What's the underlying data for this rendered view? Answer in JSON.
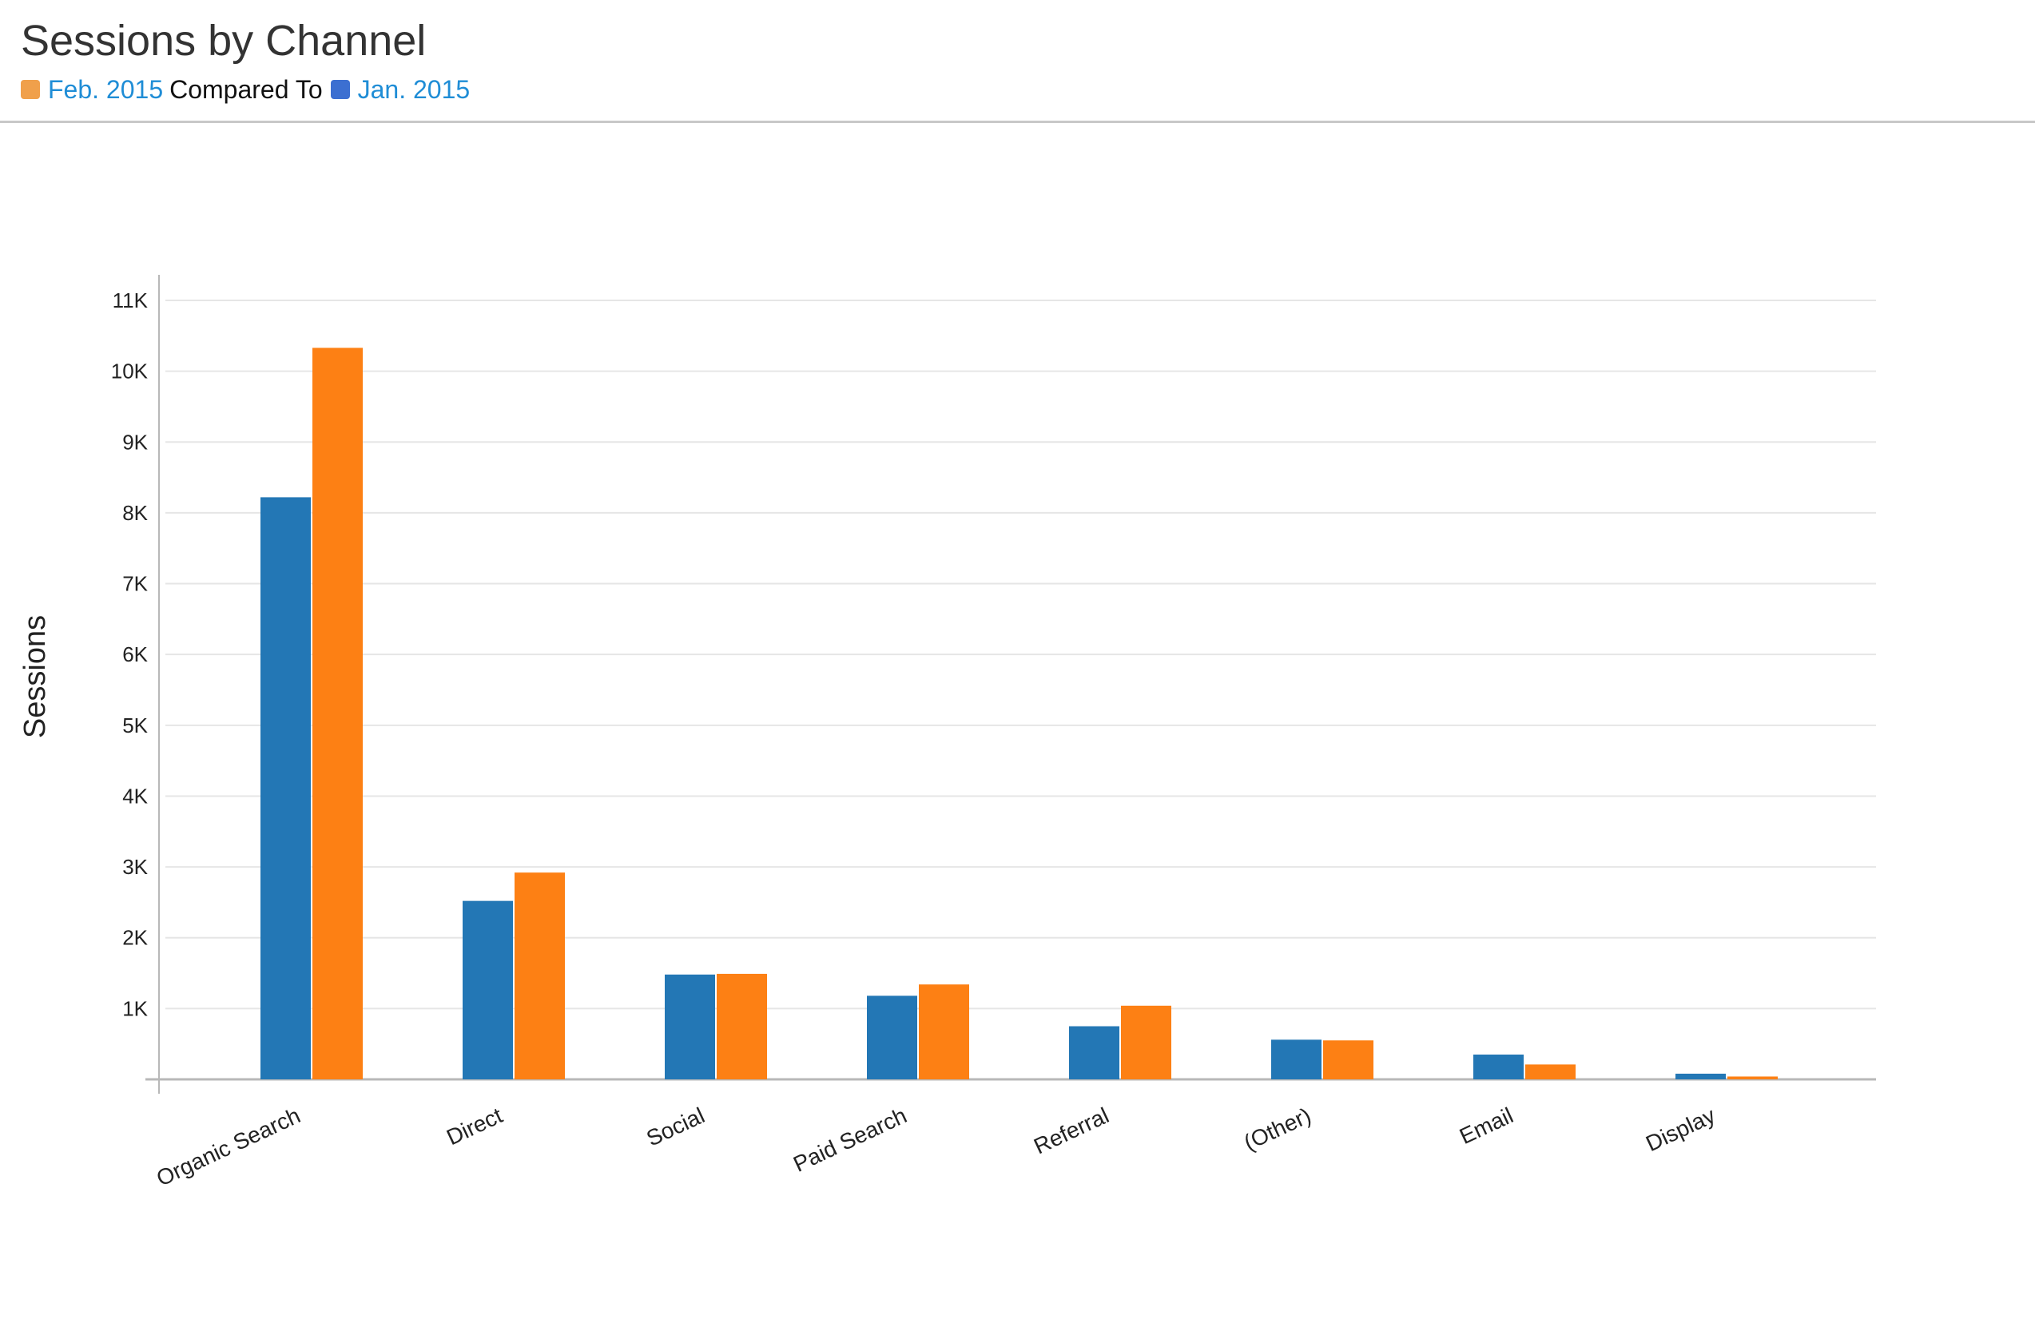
{
  "header": {
    "title": "Sessions by Channel",
    "legend": {
      "current_label": "Feb. 2015",
      "compare_text": "Compared To",
      "previous_label": "Jan. 2015",
      "current_swatch_color": "#f0a04b",
      "previous_swatch_color": "#3c6fd1"
    }
  },
  "chart_data": {
    "type": "bar",
    "ylabel": "Sessions",
    "xlabel": "",
    "ylim": [
      0,
      11000
    ],
    "yticks": [
      1000,
      2000,
      3000,
      4000,
      5000,
      6000,
      7000,
      8000,
      9000,
      10000,
      11000
    ],
    "ytick_labels": [
      "1K",
      "2K",
      "3K",
      "4K",
      "5K",
      "6K",
      "7K",
      "8K",
      "9K",
      "10K",
      "11K"
    ],
    "grid": true,
    "categories": [
      "Organic Search",
      "Direct",
      "Social",
      "Paid Search",
      "Referral",
      "(Other)",
      "Email",
      "Display"
    ],
    "series": [
      {
        "name": "Jan. 2015",
        "color": "#2377b5",
        "values": [
          8220,
          2520,
          1480,
          1180,
          750,
          560,
          350,
          80
        ]
      },
      {
        "name": "Feb. 2015",
        "color": "#fd8014",
        "values": [
          10330,
          2920,
          1490,
          1340,
          1040,
          550,
          210,
          40
        ]
      }
    ]
  }
}
